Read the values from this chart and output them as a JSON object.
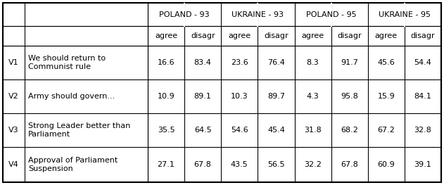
{
  "col_groups": [
    "POLAND - 93",
    "UKRAINE - 93",
    "POLAND - 95",
    "UKRAINE - 95"
  ],
  "sub_headers": [
    "agree",
    "disagr",
    "agree",
    "disagr",
    "agree",
    "disagr",
    "agree",
    "disagr"
  ],
  "row_labels": [
    "V1",
    "V2",
    "V3",
    "V4"
  ],
  "row_descriptions": [
    "We should return to\nCommunist rule",
    "Army should govern...",
    "Strong Leader better than\nParliament",
    "Approval of Parliament\nSuspension"
  ],
  "data": [
    [
      "16.6",
      "83.4",
      "23.6",
      "76.4",
      "8.3",
      "91.7",
      "45.6",
      "54.4"
    ],
    [
      "10.9",
      "89.1",
      "10.3",
      "89.7",
      "4.3",
      "95.8",
      "15.9",
      "84.1"
    ],
    [
      "35.5",
      "64.5",
      "54.6",
      "45.4",
      "31.8",
      "68.2",
      "67.2",
      "32.8"
    ],
    [
      "27.1",
      "67.8",
      "43.5",
      "56.5",
      "32.2",
      "67.8",
      "60.9",
      "39.1"
    ]
  ],
  "bg_color": "#ffffff",
  "border_color": "#000000",
  "font_color": "#000000",
  "font_size": 8.0
}
